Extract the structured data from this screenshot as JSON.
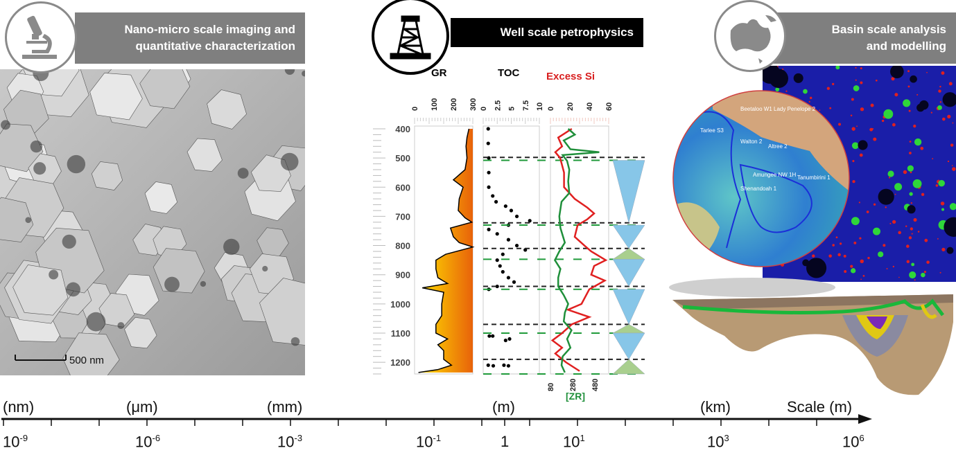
{
  "panels": {
    "nano": {
      "title_line1": "Nano-micro scale imaging and",
      "title_line2": "quantitative characterization",
      "icon": "microscope-icon",
      "scale_bar": "500 nm"
    },
    "well": {
      "title": "Well scale petrophysics",
      "icon": "drilling-rig-icon"
    },
    "basin": {
      "title_line1": "Basin scale analysis",
      "title_line2": "and modelling",
      "icon": "globe-australia-icon",
      "map_labels": [
        "Tarlee S3",
        "Beetaloo W1",
        "Lady Penelope 2",
        "Walton 2",
        "Altree 2",
        "Amungee NW 1H",
        "Tanumbirini 1",
        "Shenandoah 1"
      ]
    }
  },
  "colors": {
    "banner_gray": "#7f7f7f",
    "banner_black": "#000000",
    "gr_low": "#ffe000",
    "gr_high": "#e8620a",
    "excess_si": "#e02020",
    "zr": "#1f8f3a",
    "triangle_blue": "#87c6e8",
    "triangle_green": "#a9cf8e"
  },
  "chart_data": {
    "type": "line",
    "depth_ticks": [
      400,
      500,
      600,
      700,
      800,
      900,
      1000,
      1100,
      1200
    ],
    "tracks": [
      {
        "title": "GR",
        "ticks": [
          "0",
          "100",
          "200",
          "300"
        ],
        "range": [
          0,
          300
        ],
        "points": [
          [
            400,
            280
          ],
          [
            430,
            270
          ],
          [
            460,
            265
          ],
          [
            500,
            270
          ],
          [
            540,
            260
          ],
          [
            575,
            200
          ],
          [
            600,
            250
          ],
          [
            640,
            230
          ],
          [
            680,
            225
          ],
          [
            705,
            260
          ],
          [
            720,
            295
          ],
          [
            740,
            185
          ],
          [
            770,
            200
          ],
          [
            790,
            230
          ],
          [
            805,
            300
          ],
          [
            830,
            160
          ],
          [
            850,
            110
          ],
          [
            880,
            110
          ],
          [
            910,
            120
          ],
          [
            930,
            170
          ],
          [
            945,
            40
          ],
          [
            960,
            150
          ],
          [
            1000,
            140
          ],
          [
            1040,
            140
          ],
          [
            1070,
            110
          ],
          [
            1100,
            110
          ],
          [
            1120,
            170
          ],
          [
            1140,
            120
          ],
          [
            1160,
            150
          ],
          [
            1190,
            150
          ],
          [
            1210,
            190
          ],
          [
            1225,
            120
          ],
          [
            1235,
            20
          ]
        ]
      },
      {
        "title": "TOC",
        "ticks": [
          "0",
          "2.5",
          "5",
          "7.5",
          "10"
        ],
        "range": [
          0,
          10
        ],
        "points": [
          [
            400,
            0.4
          ],
          [
            450,
            0.4
          ],
          [
            500,
            0.5
          ],
          [
            550,
            0.5
          ],
          [
            600,
            0.5
          ],
          [
            630,
            1.2
          ],
          [
            650,
            1.8
          ],
          [
            665,
            3.5
          ],
          [
            680,
            4.5
          ],
          [
            700,
            5.5
          ],
          [
            715,
            7.8
          ],
          [
            730,
            4
          ],
          [
            745,
            0.5
          ],
          [
            760,
            2
          ],
          [
            780,
            4
          ],
          [
            800,
            5.5
          ],
          [
            815,
            7
          ],
          [
            830,
            3
          ],
          [
            850,
            2
          ],
          [
            870,
            2.5
          ],
          [
            890,
            3
          ],
          [
            910,
            4
          ],
          [
            925,
            5
          ],
          [
            940,
            2
          ],
          [
            950,
            0.5
          ],
          [
            1110,
            0.6
          ],
          [
            1110,
            1.2
          ],
          [
            1125,
            3.5
          ],
          [
            1120,
            4.2
          ],
          [
            1210,
            0.4
          ],
          [
            1212,
            1.3
          ],
          [
            1210,
            3.2
          ],
          [
            1212,
            4
          ]
        ]
      },
      {
        "title": "Excess Si",
        "ticks": [
          "0",
          "20",
          "40",
          "60"
        ],
        "range": [
          0,
          60
        ],
        "points": [
          [
            400,
            22
          ],
          [
            430,
            8
          ],
          [
            460,
            12
          ],
          [
            480,
            5
          ],
          [
            500,
            10
          ],
          [
            550,
            14
          ],
          [
            600,
            14
          ],
          [
            640,
            25
          ],
          [
            670,
            38
          ],
          [
            690,
            45
          ],
          [
            710,
            38
          ],
          [
            730,
            28
          ],
          [
            770,
            25
          ],
          [
            800,
            35
          ],
          [
            820,
            42
          ],
          [
            850,
            57
          ],
          [
            870,
            45
          ],
          [
            900,
            42
          ],
          [
            920,
            56
          ],
          [
            950,
            40
          ],
          [
            1000,
            32
          ],
          [
            1020,
            18
          ],
          [
            1045,
            40
          ],
          [
            1070,
            22
          ],
          [
            1100,
            12
          ],
          [
            1125,
            2
          ],
          [
            1150,
            12
          ],
          [
            1170,
            5
          ],
          [
            1200,
            16
          ],
          [
            1230,
            30
          ]
        ]
      }
    ],
    "zr_track": {
      "title": "[ZR]",
      "ticks": [
        "80",
        "280",
        "480"
      ],
      "range": [
        80,
        480
      ],
      "points": [
        [
          400,
          240
        ],
        [
          420,
          300
        ],
        [
          440,
          200
        ],
        [
          470,
          260
        ],
        [
          480,
          520
        ],
        [
          490,
          190
        ],
        [
          510,
          230
        ],
        [
          540,
          250
        ],
        [
          580,
          240
        ],
        [
          620,
          250
        ],
        [
          650,
          180
        ],
        [
          700,
          160
        ],
        [
          740,
          170
        ],
        [
          790,
          210
        ],
        [
          820,
          160
        ],
        [
          850,
          120
        ],
        [
          880,
          170
        ],
        [
          910,
          150
        ],
        [
          940,
          150
        ],
        [
          970,
          200
        ],
        [
          1000,
          240
        ],
        [
          1030,
          210
        ],
        [
          1060,
          200
        ],
        [
          1090,
          270
        ],
        [
          1120,
          230
        ],
        [
          1150,
          260
        ],
        [
          1180,
          190
        ],
        [
          1210,
          180
        ],
        [
          1235,
          210
        ]
      ]
    },
    "black_dashed_depths": [
      498,
      722,
      810,
      940,
      1070,
      1190
    ],
    "green_dashed_depths": [
      508,
      730,
      847,
      950,
      1100,
      1240
    ],
    "sequence_triangles": [
      {
        "top": 508,
        "bottom": 722,
        "kind": "down",
        "color": "blue"
      },
      {
        "top": 730,
        "bottom": 810,
        "kind": "down",
        "color": "blue"
      },
      {
        "top": 810,
        "bottom": 847,
        "kind": "up",
        "color": "green"
      },
      {
        "top": 847,
        "bottom": 940,
        "kind": "down",
        "color": "blue"
      },
      {
        "top": 950,
        "bottom": 1070,
        "kind": "down",
        "color": "blue"
      },
      {
        "top": 1070,
        "bottom": 1100,
        "kind": "up",
        "color": "green"
      },
      {
        "top": 1100,
        "bottom": 1190,
        "kind": "down",
        "color": "blue"
      },
      {
        "top": 1190,
        "bottom": 1240,
        "kind": "up",
        "color": "green"
      }
    ]
  },
  "scale_axis": {
    "title": "Scale (m)",
    "units": [
      "(nm)",
      "(μm)",
      "(mm)",
      "(m)",
      "(km)"
    ],
    "tick_labels": [
      {
        "base": "10",
        "exp": "-9"
      },
      {
        "base": "10",
        "exp": "-6"
      },
      {
        "base": "10",
        "exp": "-3"
      },
      {
        "base": "10",
        "exp": "-1"
      },
      {
        "base": "1",
        "exp": ""
      },
      {
        "base": "10",
        "exp": "1"
      },
      {
        "base": "10",
        "exp": "3"
      },
      {
        "base": "10",
        "exp": "6"
      }
    ]
  }
}
